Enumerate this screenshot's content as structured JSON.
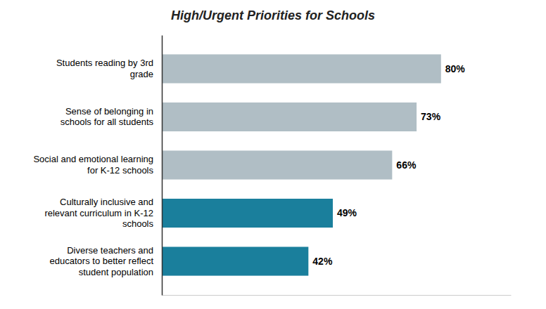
{
  "chart_data": {
    "type": "bar",
    "orientation": "horizontal",
    "title": "High/Urgent Priorities for Schools",
    "categories": [
      "Diverse teachers and\neducators to better reflect\nstudent population",
      "Culturally inclusive and\nrelevant curriculum in K-12\nschools",
      "Social and emotional learning\nfor K-12 schools",
      "Sense of belonging in\nschools for all students",
      "Students reading by 3rd\ngrade"
    ],
    "values": [
      42,
      49,
      66,
      73,
      80
    ],
    "value_labels": [
      "42%",
      "49%",
      "66%",
      "73%",
      "80%"
    ],
    "colors": [
      "#1a7f9c",
      "#1a7f9c",
      "#b0bec5",
      "#b0bec5",
      "#b0bec5"
    ],
    "xlim": [
      0,
      100
    ],
    "data_labels": true,
    "tick_labels": "y",
    "grid": false
  }
}
